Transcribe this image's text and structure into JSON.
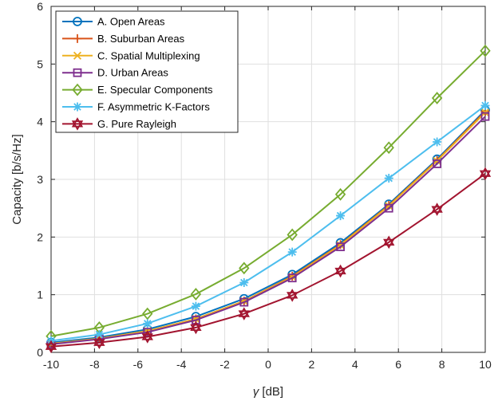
{
  "chart_data": {
    "type": "line",
    "xlabel_symbol": "γ",
    "xlabel_unit": "[dB]",
    "ylabel": "Capacity [b/s/Hz]",
    "xlim": [
      -10,
      10
    ],
    "ylim": [
      0,
      6
    ],
    "xticks": [
      -10,
      -8,
      -6,
      -4,
      -2,
      0,
      2,
      4,
      6,
      8,
      10
    ],
    "yticks": [
      0,
      1,
      2,
      3,
      4,
      5,
      6
    ],
    "grid": true,
    "legend_position": "top-left",
    "x": [
      -10,
      -7.78,
      -5.56,
      -3.33,
      -1.11,
      1.11,
      3.33,
      5.56,
      7.78,
      10
    ],
    "series": [
      {
        "name": "A. Open Areas",
        "color": "#0072BD",
        "marker": "circle",
        "values": [
          0.17,
          0.26,
          0.4,
          0.62,
          0.93,
          1.35,
          1.9,
          2.57,
          3.35,
          4.2
        ]
      },
      {
        "name": "B. Suburban Areas",
        "color": "#D95319",
        "marker": "plus",
        "values": [
          0.15,
          0.24,
          0.37,
          0.58,
          0.89,
          1.32,
          1.87,
          2.55,
          3.33,
          4.18
        ]
      },
      {
        "name": "C. Spatial Multiplexing",
        "color": "#EDB120",
        "marker": "x",
        "values": [
          0.15,
          0.24,
          0.37,
          0.58,
          0.89,
          1.31,
          1.86,
          2.54,
          3.32,
          4.16
        ]
      },
      {
        "name": "D. Urban Areas",
        "color": "#7E2F8E",
        "marker": "square",
        "values": [
          0.14,
          0.23,
          0.35,
          0.56,
          0.87,
          1.29,
          1.83,
          2.5,
          3.27,
          4.09
        ]
      },
      {
        "name": "E. Specular Components",
        "color": "#77AC30",
        "marker": "diamond",
        "values": [
          0.28,
          0.43,
          0.67,
          1.01,
          1.46,
          2.04,
          2.74,
          3.55,
          4.41,
          5.23
        ]
      },
      {
        "name": "F. Asymmetric K-Factors",
        "color": "#4DBEEE",
        "marker": "asterisk",
        "values": [
          0.2,
          0.31,
          0.5,
          0.8,
          1.21,
          1.74,
          2.37,
          3.02,
          3.65,
          4.28
        ]
      },
      {
        "name": "G. Pure Rayleigh",
        "color": "#A2142F",
        "marker": "hexagram",
        "values": [
          0.1,
          0.17,
          0.27,
          0.43,
          0.67,
          0.99,
          1.41,
          1.91,
          2.48,
          3.1
        ]
      }
    ]
  }
}
